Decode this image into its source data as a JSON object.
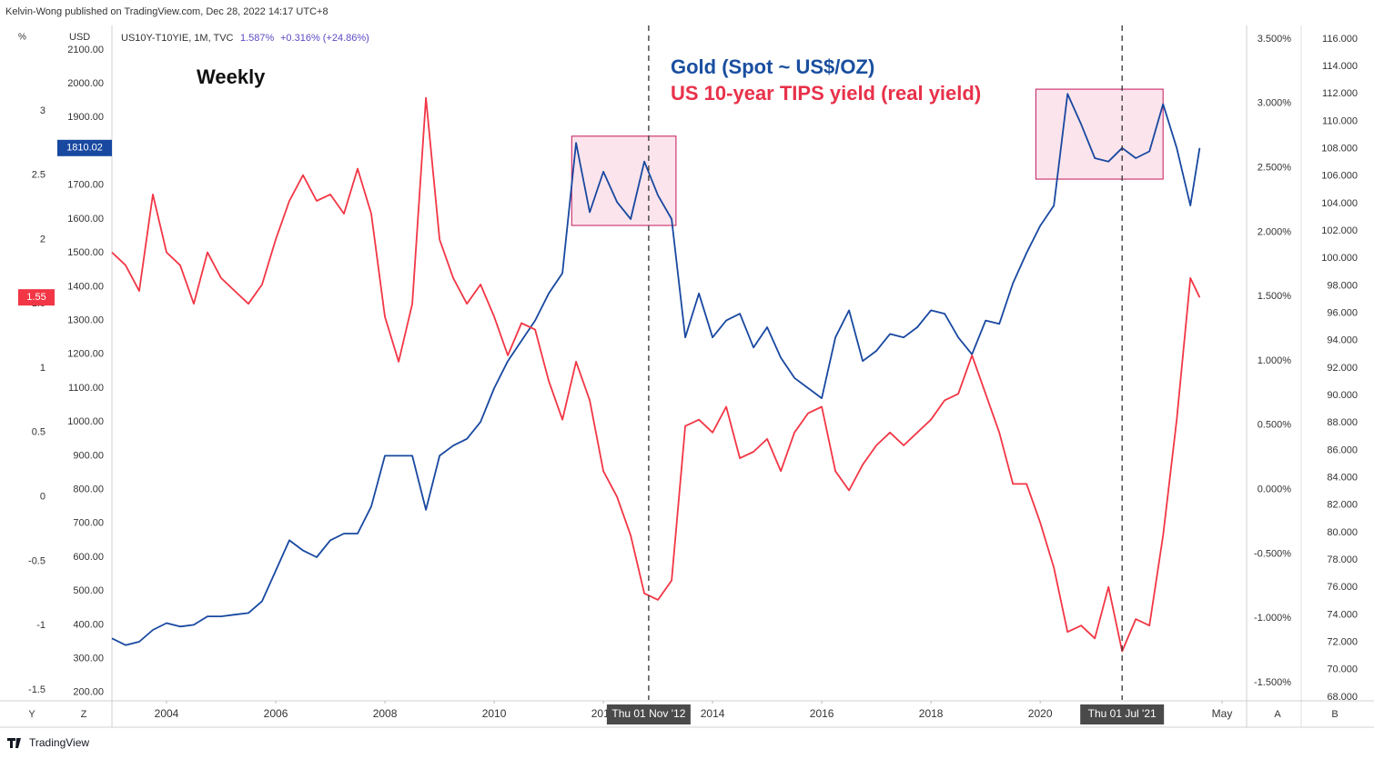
{
  "header": {
    "publisher": "Kelvin-Wong published on TradingView.com, Dec 28, 2022 14:17 UTC+8",
    "symbol": "US10Y-T10YIE, 1M, TVC",
    "last": "1.587%",
    "change": "+0.316% (+24.86%)"
  },
  "axis_units": {
    "left": "%",
    "usd": "USD"
  },
  "buttons": [
    "Y",
    "Z",
    "A",
    "B"
  ],
  "footer": "TradingView",
  "chart_data": {
    "type": "line",
    "annotations": {
      "period": "Weekly",
      "gold_label": "Gold (Spot ~ US$/OZ)",
      "tips_label": "US 10-year TIPS yield (real yield)"
    },
    "x": [
      2003,
      2003.25,
      2003.5,
      2003.75,
      2004,
      2004.25,
      2004.5,
      2004.75,
      2005,
      2005.25,
      2005.5,
      2005.75,
      2006,
      2006.25,
      2006.5,
      2006.75,
      2007,
      2007.25,
      2007.5,
      2007.75,
      2008,
      2008.25,
      2008.5,
      2008.75,
      2009,
      2009.25,
      2009.5,
      2009.75,
      2010,
      2010.25,
      2010.5,
      2010.75,
      2011,
      2011.25,
      2011.5,
      2011.75,
      2012,
      2012.25,
      2012.5,
      2012.75,
      2013,
      2013.25,
      2013.5,
      2013.75,
      2014,
      2014.25,
      2014.5,
      2014.75,
      2015,
      2015.25,
      2015.5,
      2015.75,
      2016,
      2016.25,
      2016.5,
      2016.75,
      2017,
      2017.25,
      2017.5,
      2017.75,
      2018,
      2018.25,
      2018.5,
      2018.75,
      2019,
      2019.25,
      2019.5,
      2019.75,
      2020,
      2020.25,
      2020.5,
      2020.75,
      2021,
      2021.25,
      2021.5,
      2021.75,
      2022,
      2022.25,
      2022.5,
      2022.75,
      2022.92
    ],
    "series": [
      {
        "name": "Gold (Spot ~ US$/OZ)",
        "color": "#1848a0",
        "axis": "y",
        "last_value_label": "1810.02",
        "values": [
          360,
          340,
          350,
          385,
          405,
          395,
          400,
          425,
          425,
          430,
          435,
          470,
          560,
          650,
          620,
          600,
          650,
          670,
          670,
          750,
          900,
          900,
          900,
          740,
          900,
          930,
          950,
          1000,
          1100,
          1180,
          1240,
          1300,
          1380,
          1440,
          1825,
          1620,
          1740,
          1650,
          1600,
          1770,
          1670,
          1600,
          1250,
          1380,
          1250,
          1300,
          1320,
          1220,
          1280,
          1190,
          1130,
          1100,
          1070,
          1250,
          1330,
          1180,
          1210,
          1260,
          1250,
          1280,
          1330,
          1320,
          1250,
          1200,
          1300,
          1290,
          1410,
          1500,
          1580,
          1640,
          1970,
          1880,
          1780,
          1770,
          1810,
          1780,
          1800,
          1940,
          1810,
          1640,
          1810.02
        ]
      },
      {
        "name": "US 10-year TIPS yield (real yield)",
        "color": "#f23645",
        "axis": "y2",
        "last_value_label": "1.55",
        "values": [
          1.9,
          1.8,
          1.6,
          2.35,
          1.9,
          1.8,
          1.5,
          1.9,
          1.7,
          1.6,
          1.5,
          1.65,
          2.0,
          2.3,
          2.5,
          2.3,
          2.35,
          2.2,
          2.55,
          2.2,
          1.4,
          1.05,
          1.5,
          3.1,
          2.0,
          1.7,
          1.5,
          1.65,
          1.4,
          1.1,
          1.35,
          1.3,
          0.9,
          0.6,
          1.05,
          0.75,
          0.2,
          0.0,
          -0.3,
          -0.75,
          -0.8,
          -0.65,
          0.55,
          0.6,
          0.5,
          0.7,
          0.3,
          0.35,
          0.45,
          0.2,
          0.5,
          0.65,
          0.7,
          0.2,
          0.05,
          0.25,
          0.4,
          0.5,
          0.4,
          0.5,
          0.6,
          0.75,
          0.8,
          1.1,
          0.8,
          0.5,
          0.1,
          0.1,
          -0.2,
          -0.55,
          -1.05,
          -1.0,
          -1.1,
          -0.7,
          -1.2,
          -0.95,
          -1.0,
          -0.3,
          0.6,
          1.7,
          1.55
        ]
      }
    ],
    "xlim": [
      2003,
      2023.78
    ],
    "xticks": [
      2004,
      2006,
      2008,
      2010,
      2012,
      2014,
      2016,
      2018,
      2020,
      {
        "value": 2023.33,
        "label": "May"
      }
    ],
    "ylim": [
      178,
      2167
    ],
    "yticks": [
      {
        "value": 200,
        "label": "200.00"
      },
      {
        "value": 300,
        "label": "300.00"
      },
      {
        "value": 400,
        "label": "400.00"
      },
      {
        "value": 500,
        "label": "500.00"
      },
      {
        "value": 600,
        "label": "600.00"
      },
      {
        "value": 700,
        "label": "700.00"
      },
      {
        "value": 800,
        "label": "800.00"
      },
      {
        "value": 900,
        "label": "900.00"
      },
      {
        "value": 1000,
        "label": "1000.00"
      },
      {
        "value": 1100,
        "label": "1100.00"
      },
      {
        "value": 1200,
        "label": "1200.00"
      },
      {
        "value": 1300,
        "label": "1300.00"
      },
      {
        "value": 1400,
        "label": "1400.00"
      },
      {
        "value": 1500,
        "label": "1500.00"
      },
      {
        "value": 1600,
        "label": "1600.00"
      },
      {
        "value": 1700,
        "label": "1700.00"
      },
      {
        "value": 1800,
        "label": "1800.00"
      },
      {
        "value": 1900,
        "label": "1900.00"
      },
      {
        "value": 2000,
        "label": "2000.00"
      },
      {
        "value": 2100,
        "label": "2100.00"
      }
    ],
    "y2lim": [
      -1.578,
      3.649
    ],
    "y2ticks": [
      3,
      2.5,
      2,
      1.5,
      1,
      0.5,
      0,
      -0.5,
      -1,
      -1.5
    ],
    "y3lim": [
      -1.634,
      3.592
    ],
    "y3ticks": [
      {
        "value": 3.5,
        "label": "3.500%"
      },
      {
        "value": 3,
        "label": "3.000%"
      },
      {
        "value": 2.5,
        "label": "2.500%"
      },
      {
        "value": 2,
        "label": "2.000%"
      },
      {
        "value": 1.5,
        "label": "1.500%"
      },
      {
        "value": 1,
        "label": "1.000%"
      },
      {
        "value": 0.5,
        "label": "0.500%"
      },
      {
        "value": 0,
        "label": "0.000%"
      },
      {
        "value": -0.5,
        "label": "-0.500%"
      },
      {
        "value": -1,
        "label": "-1.000%"
      },
      {
        "value": -1.5,
        "label": "-1.500%"
      }
    ],
    "y4lim": [
      67.8,
      116.86
    ],
    "y4ticks": [
      {
        "value": 68,
        "label": "68.000"
      },
      {
        "value": 70,
        "label": "70.000"
      },
      {
        "value": 72,
        "label": "72.000"
      },
      {
        "value": 74,
        "label": "74.000"
      },
      {
        "value": 76,
        "label": "76.000"
      },
      {
        "value": 78,
        "label": "78.000"
      },
      {
        "value": 80,
        "label": "80.000"
      },
      {
        "value": 82,
        "label": "82.000"
      },
      {
        "value": 84,
        "label": "84.000"
      },
      {
        "value": 86,
        "label": "86.000"
      },
      {
        "value": 88,
        "label": "88.000"
      },
      {
        "value": 90,
        "label": "90.000"
      },
      {
        "value": 92,
        "label": "92.000"
      },
      {
        "value": 94,
        "label": "94.000"
      },
      {
        "value": 96,
        "label": "96.000"
      },
      {
        "value": 98,
        "label": "98.000"
      },
      {
        "value": 100,
        "label": "100.000"
      },
      {
        "value": 102,
        "label": "102.000"
      },
      {
        "value": 104,
        "label": "104.000"
      },
      {
        "value": 106,
        "label": "106.000"
      },
      {
        "value": 108,
        "label": "108.000"
      },
      {
        "value": 110,
        "label": "110.000"
      },
      {
        "value": 112,
        "label": "112.000"
      },
      {
        "value": 114,
        "label": "114.000"
      },
      {
        "value": 116,
        "label": "116.000"
      }
    ],
    "grid": false,
    "markers": [
      {
        "x": 2012.83,
        "label": "Thu 01 Nov '12"
      },
      {
        "x": 2021.5,
        "label": "Thu 01 Jul '21"
      }
    ],
    "highlight_boxes": [
      {
        "x": [
          2011.42,
          2013.33
        ],
        "y": [
          1581,
          1845
        ]
      },
      {
        "x": [
          2019.92,
          2022.25
        ],
        "y": [
          1718,
          1984
        ]
      }
    ]
  }
}
